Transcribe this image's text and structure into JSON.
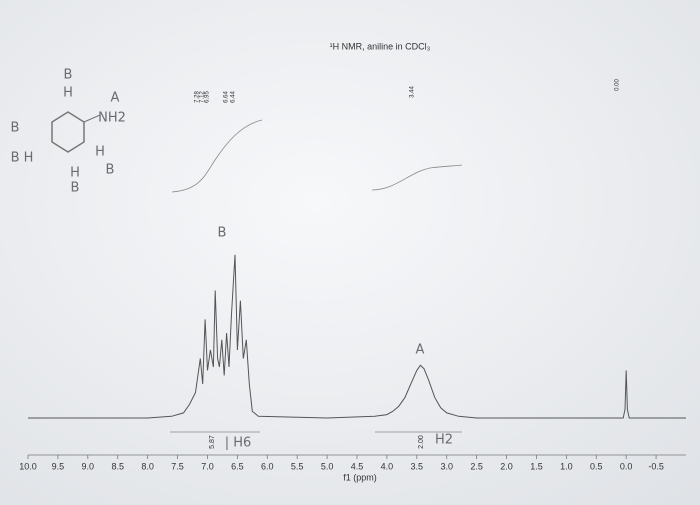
{
  "chart_data": {
    "type": "line",
    "title": "¹H NMR, aniline in CDCl₃",
    "x_label": "f1 (ppm)",
    "xlim": [
      10.0,
      -1.0
    ],
    "ylim": [
      0,
      100
    ],
    "xticks": [
      {
        "value": 10,
        "label": "10.0"
      },
      9.5,
      {
        "value": 9,
        "label": "9.0"
      },
      8.5,
      {
        "value": 8,
        "label": "8.0"
      },
      7.5,
      {
        "value": 7,
        "label": "7.0"
      },
      6.5,
      {
        "value": 6,
        "label": "6.0"
      },
      5.5,
      {
        "value": 5,
        "label": "5.0"
      },
      4.5,
      {
        "value": 4,
        "label": "4.0"
      },
      3.5,
      {
        "value": 3,
        "label": "3.0"
      },
      2.5,
      {
        "value": 2,
        "label": "2.0"
      },
      1.5,
      {
        "value": 1,
        "label": "1.0"
      },
      0.5,
      {
        "value": 0,
        "label": "0.0"
      },
      -0.5
    ],
    "color": "#555555",
    "x": [
      10.0,
      8.0,
      7.6,
      7.4,
      7.3,
      7.2,
      7.12,
      7.08,
      7.04,
      7.0,
      6.95,
      6.9,
      6.87,
      6.83,
      6.8,
      6.76,
      6.72,
      6.68,
      6.64,
      6.6,
      6.54,
      6.5,
      6.45,
      6.4,
      6.35,
      6.3,
      6.25,
      6.15,
      5.0,
      4.2,
      4.0,
      3.9,
      3.8,
      3.7,
      3.6,
      3.5,
      3.44,
      3.38,
      3.3,
      3.2,
      3.1,
      3.0,
      2.8,
      2.5,
      0.2,
      0.05,
      0.02,
      0.0,
      -0.02,
      -0.05,
      -0.2,
      -1.0
    ],
    "values": [
      0,
      0,
      1,
      3,
      8,
      15,
      35,
      20,
      58,
      28,
      40,
      30,
      75,
      35,
      30,
      46,
      25,
      50,
      30,
      60,
      96,
      40,
      69,
      35,
      46,
      20,
      4,
      1,
      0,
      1,
      2,
      4,
      7,
      12,
      20,
      28,
      31,
      29,
      22,
      12,
      6,
      3,
      1,
      0,
      0,
      0,
      5,
      28,
      5,
      0,
      0,
      0
    ],
    "peak_labels": [
      "7.28",
      "7.12",
      "6.95",
      "6.64",
      "6.44",
      "3.44",
      "0.00"
    ],
    "integrals": [
      "5.87",
      "2.00"
    ],
    "annotations": [
      "B",
      "H",
      "A",
      "NH2",
      "B",
      "B H",
      "H",
      "B",
      "H",
      "B",
      "B",
      "A",
      "| H6",
      "H2"
    ]
  }
}
